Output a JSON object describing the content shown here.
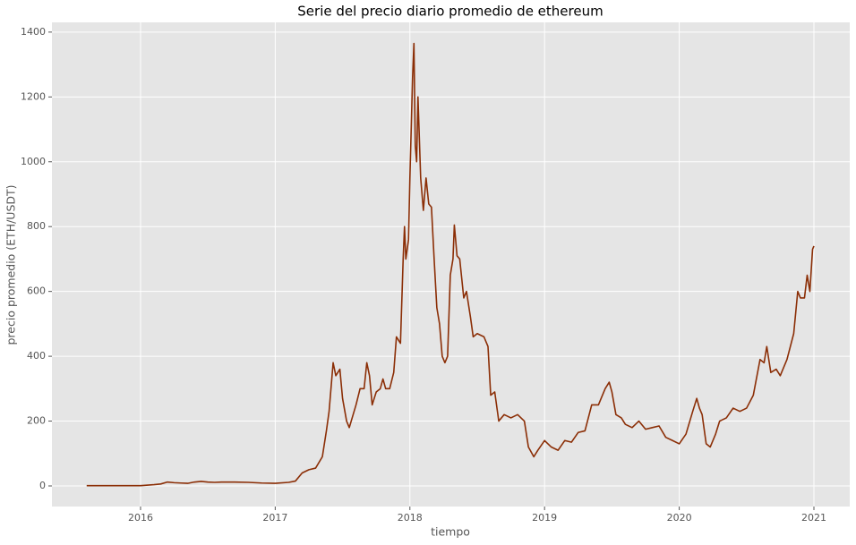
{
  "chart_data": {
    "type": "line",
    "title": "Serie del precio diario promedio de ethereum",
    "x_label": "tiempo",
    "y_label": "precio promedio (ETH/USDT)",
    "x": [
      2015.6,
      2015.7,
      2015.8,
      2015.9,
      2016.0,
      2016.1,
      2016.15,
      2016.2,
      2016.25,
      2016.3,
      2016.35,
      2016.4,
      2016.45,
      2016.5,
      2016.55,
      2016.6,
      2016.7,
      2016.8,
      2016.9,
      2017.0,
      2017.1,
      2017.15,
      2017.2,
      2017.25,
      2017.3,
      2017.35,
      2017.38,
      2017.4,
      2017.43,
      2017.45,
      2017.48,
      2017.5,
      2017.53,
      2017.55,
      2017.6,
      2017.63,
      2017.66,
      2017.68,
      2017.7,
      2017.72,
      2017.75,
      2017.78,
      2017.8,
      2017.82,
      2017.85,
      2017.88,
      2017.9,
      2017.93,
      2017.95,
      2017.96,
      2017.97,
      2017.99,
      2018.0,
      2018.02,
      2018.03,
      2018.04,
      2018.05,
      2018.06,
      2018.08,
      2018.1,
      2018.12,
      2018.14,
      2018.16,
      2018.18,
      2018.2,
      2018.22,
      2018.24,
      2018.26,
      2018.28,
      2018.3,
      2018.32,
      2018.33,
      2018.35,
      2018.37,
      2018.4,
      2018.42,
      2018.45,
      2018.47,
      2018.5,
      2018.55,
      2018.58,
      2018.6,
      2018.63,
      2018.66,
      2018.7,
      2018.75,
      2018.8,
      2018.85,
      2018.88,
      2018.92,
      2018.95,
      2019.0,
      2019.05,
      2019.1,
      2019.15,
      2019.2,
      2019.25,
      2019.3,
      2019.35,
      2019.4,
      2019.45,
      2019.48,
      2019.5,
      2019.53,
      2019.57,
      2019.6,
      2019.65,
      2019.7,
      2019.75,
      2019.8,
      2019.85,
      2019.9,
      2019.95,
      2020.0,
      2020.05,
      2020.1,
      2020.13,
      2020.15,
      2020.17,
      2020.2,
      2020.23,
      2020.27,
      2020.3,
      2020.35,
      2020.4,
      2020.45,
      2020.5,
      2020.55,
      2020.6,
      2020.63,
      2020.65,
      2020.68,
      2020.72,
      2020.75,
      2020.8,
      2020.85,
      2020.88,
      2020.9,
      2020.93,
      2020.95,
      2020.97,
      2020.99,
      2021.0
    ],
    "series": [
      {
        "name": "precio",
        "color": "#8b2e06",
        "values": [
          1,
          1,
          1,
          1,
          1,
          4,
          6,
          12,
          10,
          9,
          8,
          12,
          14,
          12,
          11,
          12,
          12,
          11,
          9,
          8,
          11,
          15,
          40,
          50,
          55,
          90,
          170,
          230,
          380,
          340,
          360,
          270,
          200,
          180,
          250,
          300,
          300,
          380,
          340,
          250,
          290,
          300,
          330,
          300,
          300,
          350,
          460,
          440,
          700,
          800,
          700,
          760,
          950,
          1260,
          1365,
          1050,
          1000,
          1200,
          950,
          850,
          950,
          870,
          860,
          700,
          550,
          500,
          400,
          380,
          400,
          650,
          700,
          805,
          710,
          700,
          580,
          600,
          520,
          460,
          470,
          460,
          430,
          280,
          290,
          200,
          220,
          210,
          220,
          200,
          120,
          90,
          110,
          140,
          120,
          110,
          140,
          135,
          165,
          170,
          250,
          250,
          300,
          320,
          290,
          220,
          210,
          190,
          180,
          200,
          175,
          180,
          185,
          150,
          140,
          130,
          160,
          230,
          270,
          240,
          220,
          130,
          120,
          160,
          200,
          210,
          240,
          230,
          240,
          280,
          390,
          380,
          430,
          350,
          360,
          340,
          390,
          470,
          600,
          580,
          580,
          650,
          600,
          730,
          740
        ]
      }
    ],
    "xlim": [
      2015.342,
      2021.266
    ],
    "xticks": [
      2016,
      2017,
      2018,
      2019,
      2020,
      2021
    ],
    "ylim": [
      -63.5,
      1430
    ],
    "yticks": [
      0,
      200,
      400,
      600,
      800,
      1000,
      1200,
      1400
    ],
    "grid": true
  }
}
